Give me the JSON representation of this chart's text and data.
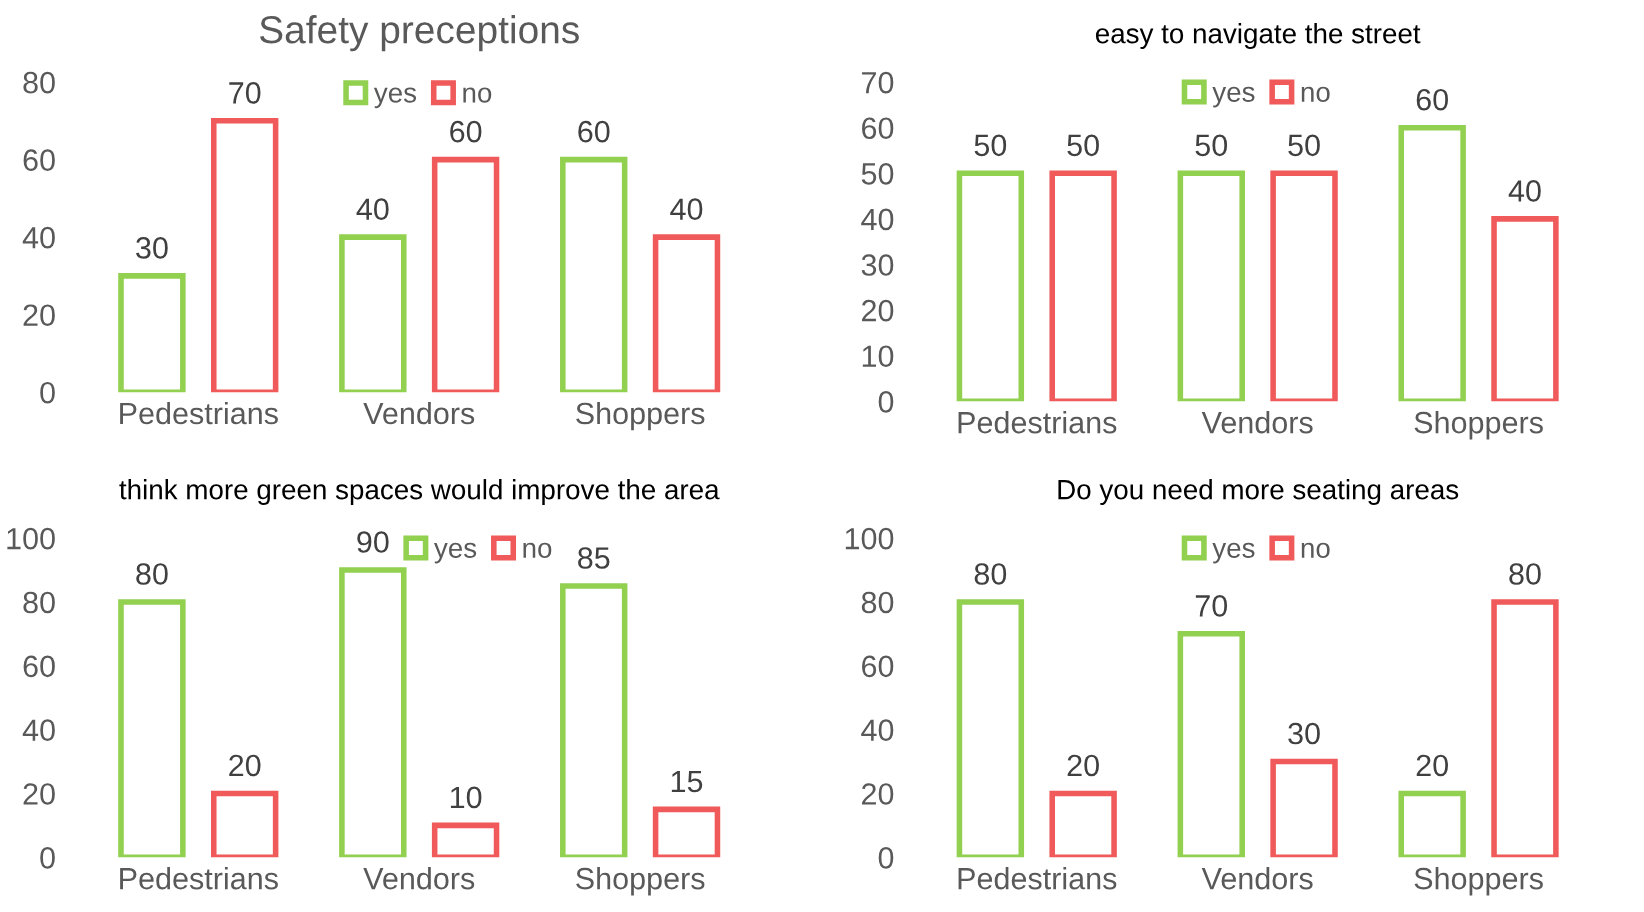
{
  "chart_data": [
    {
      "type": "bar",
      "title": "Safety preceptions",
      "categories": [
        "Pedestrians",
        "Vendors",
        "Shoppers"
      ],
      "series": [
        {
          "name": "yes",
          "color": "#92d050",
          "values": [
            30,
            40,
            60
          ]
        },
        {
          "name": "no",
          "color": "#f05a5a",
          "values": [
            70,
            60,
            40
          ]
        }
      ],
      "ylim": [
        0,
        80
      ],
      "yticks": [
        0,
        20,
        40,
        60,
        80
      ],
      "data_labels": true,
      "legend": "top",
      "grid": false
    },
    {
      "type": "bar",
      "title": "easy to navigate the street",
      "categories": [
        "Pedestrians",
        "Vendors",
        "Shoppers"
      ],
      "series": [
        {
          "name": "yes",
          "color": "#92d050",
          "values": [
            50,
            50,
            60
          ]
        },
        {
          "name": "no",
          "color": "#f05a5a",
          "values": [
            50,
            50,
            40
          ]
        }
      ],
      "ylim": [
        0,
        70
      ],
      "yticks": [
        0,
        10,
        20,
        30,
        40,
        50,
        60,
        70
      ],
      "data_labels": true,
      "legend": "top",
      "grid": false
    },
    {
      "type": "bar",
      "title": "think more green spaces would improve the area",
      "categories": [
        "Pedestrians",
        "Vendors",
        "Shoppers"
      ],
      "series": [
        {
          "name": "yes",
          "color": "#92d050",
          "values": [
            80,
            90,
            85
          ]
        },
        {
          "name": "no",
          "color": "#f05a5a",
          "values": [
            20,
            10,
            15
          ]
        }
      ],
      "ylim": [
        0,
        100
      ],
      "yticks": [
        0,
        20,
        40,
        60,
        80,
        100
      ],
      "data_labels": true,
      "legend": "top right",
      "grid": false
    },
    {
      "type": "bar",
      "title": "Do you need more seating areas",
      "categories": [
        "Pedestrians",
        "Vendors",
        "Shoppers"
      ],
      "series": [
        {
          "name": "yes",
          "color": "#92d050",
          "values": [
            80,
            70,
            20
          ]
        },
        {
          "name": "no",
          "color": "#f05a5a",
          "values": [
            20,
            30,
            80
          ]
        }
      ],
      "ylim": [
        0,
        100
      ],
      "yticks": [
        0,
        20,
        40,
        60,
        80,
        100
      ],
      "data_labels": true,
      "legend": "top",
      "grid": false
    }
  ]
}
